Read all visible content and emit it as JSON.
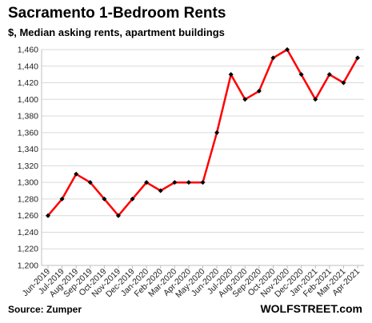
{
  "chart_data": {
    "type": "line",
    "title": "Sacramento 1-Bedroom Rents",
    "subtitle": "$, Median asking rents, apartment buildings",
    "xlabel": "",
    "ylabel": "",
    "categories": [
      "Jun-2019",
      "Jul-2019",
      "Aug-2019",
      "Sep-2019",
      "Oct-2019",
      "Nov-2019",
      "Dec-2019",
      "Jan-2020",
      "Feb-2020",
      "Mar-2020",
      "Apr-2020",
      "May-2020",
      "Jun-2020",
      "Jul-2020",
      "Aug-2020",
      "Sep-2020",
      "Oct-2020",
      "Nov-2020",
      "Dec-2020",
      "Jan-2021",
      "Feb-2021",
      "Mar-2021",
      "Apr-2021"
    ],
    "series": [
      {
        "values": [
          1260,
          1280,
          1310,
          1300,
          1280,
          1260,
          1280,
          1300,
          1290,
          1300,
          1300,
          1300,
          1360,
          1430,
          1400,
          1410,
          1450,
          1460,
          1430,
          1400,
          1430,
          1420,
          1450
        ],
        "color": "#ff0000",
        "marker_color": "#000000"
      }
    ],
    "ylim": [
      1200,
      1460
    ],
    "yticks": [
      1200,
      1220,
      1240,
      1260,
      1280,
      1300,
      1320,
      1340,
      1360,
      1380,
      1400,
      1420,
      1440,
      1460
    ],
    "ytick_labels": [
      "1,200",
      "1,220",
      "1,240",
      "1,260",
      "1,280",
      "1,300",
      "1,320",
      "1,340",
      "1,360",
      "1,380",
      "1,400",
      "1,420",
      "1,440",
      "1,460"
    ],
    "grid": true,
    "legend": "none"
  },
  "footer": {
    "source": "Source: Zumper",
    "brand": "WOLFSTREET.com"
  }
}
